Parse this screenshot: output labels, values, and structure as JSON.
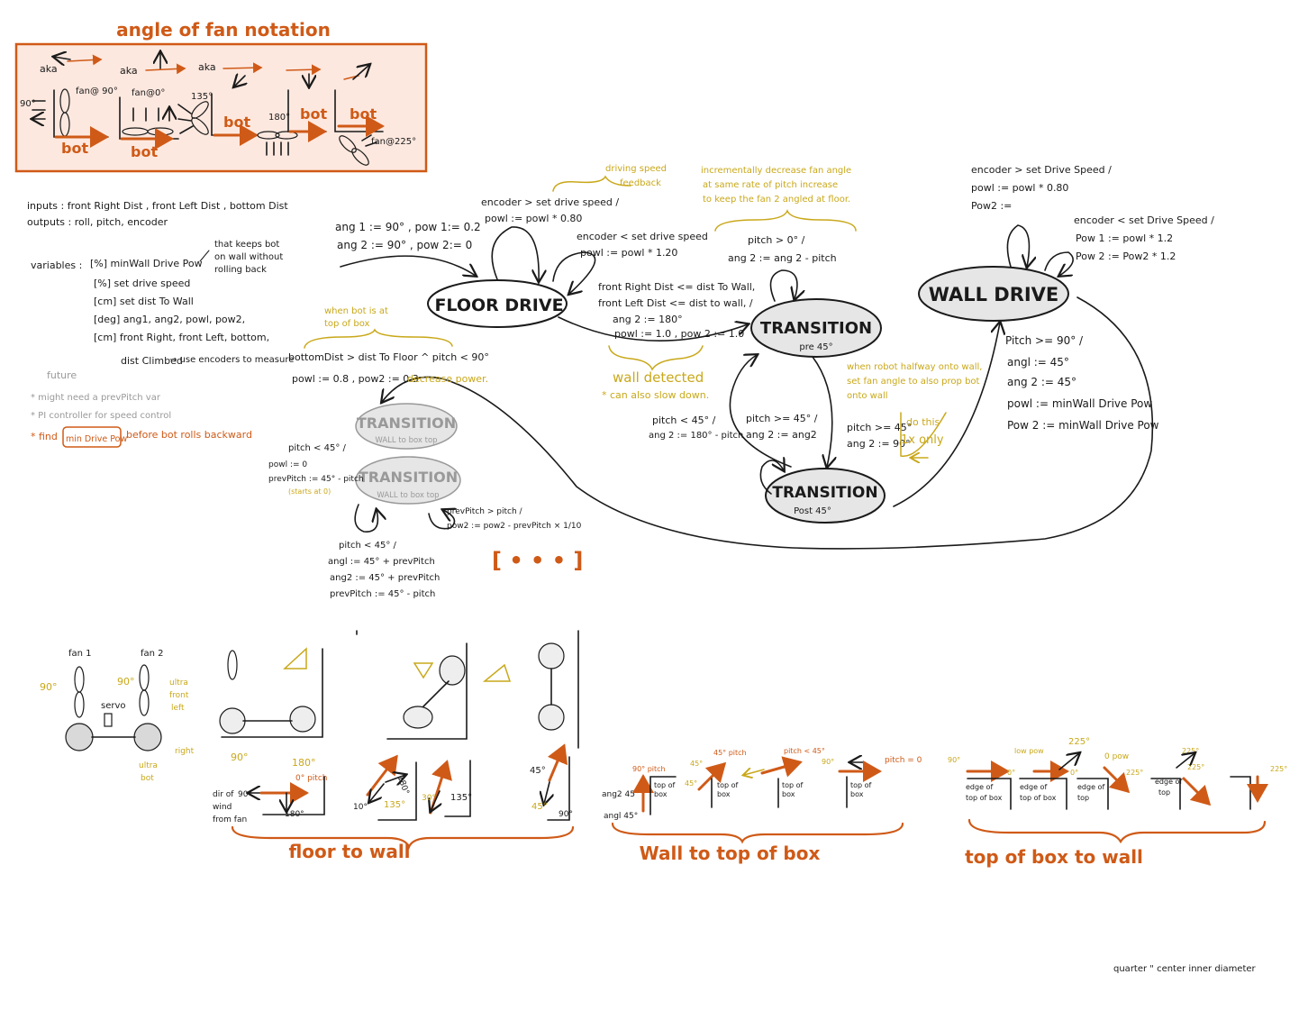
{
  "notation": {
    "title": "angle of fan notation",
    "aka": "aka",
    "fan90": "fan@ 90°",
    "fan0": "fan@0°",
    "a135": "135°",
    "a180": "180°",
    "fan225": "fan@225°",
    "deg90": "90°",
    "bot": "bot"
  },
  "io": {
    "inputs": "inputs : front Right Dist , front Left Dist , bottom Dist",
    "outputs": "outputs :  roll, pitch, encoder"
  },
  "variables": {
    "label": "variables :",
    "v1": "[%] minWall Drive Pow",
    "v1_note": "that keeps bot on wall without rolling back",
    "v2": "[%] set drive speed",
    "v3": "[cm] set dist To Wall",
    "v4": "[deg] ang1, ang2, powl, pow2,",
    "v5": "[cm] front Right, front Left, bottom,",
    "v6": "dist Climbed",
    "v6_note": "→ use encoders to measure"
  },
  "future": {
    "label": "future",
    "f1": "* might need a prevPitch var",
    "f2": "* PI controller for speed control",
    "f3_pre": "* find",
    "f3_box": "min Drive Pow",
    "f3_post": "before bot rolls backward"
  },
  "states": {
    "floor": "FLOOR DRIVE",
    "wall": "WALL DRIVE",
    "trans_pre": "TRANSITION",
    "trans_pre_sub": "pre 45°",
    "trans_post": "TRANSITION",
    "trans_post_sub": "Post 45°",
    "trans_box1": "TRANSITION",
    "trans_box1_sub": "WALL to box top",
    "trans_box2": "TRANSITION",
    "trans_box2_sub": "WALL to box top"
  },
  "labels": {
    "init1": "ang 1 := 90° , pow 1:= 0.2",
    "init2": "ang 2 := 90° , pow 2:= 0",
    "enc_up1": "encoder > set drive speed /",
    "enc_up2": "powl := powl * 0.80",
    "drive_fb": "driving speed feedback",
    "enc_dn1": "encoder < set drive speed",
    "enc_dn2": "powl := powl * 1.20",
    "fw1": "front Right Dist <= dist To Wall,",
    "fw2": "front Left Dist <= dist to wall, /",
    "fw3": "ang 2 := 180°",
    "fw4": "powl := 1.0 , pow 2 := 1.0",
    "wall_det": "wall detected",
    "slow": "* can also slow down.",
    "incr1": "incrementally decrease fan angle",
    "incr2": "at same rate of pitch increase",
    "incr3": "to keep the fan 2 angled at floor.",
    "pre_self1": "pitch > 0° /",
    "pre_self2": "ang 2 := ang 2 - pitch",
    "pre_back1": "pitch < 45° /",
    "pre_back2": "ang 2 := 180° - pitch",
    "pre_fwd1": "pitch >= 45° /",
    "pre_fwd2": "ang 2 := ang2",
    "halfway1": "when robot halfway onto wall,",
    "halfway2": "set fan angle to also prop bot",
    "halfway3": "onto wall",
    "post1": "pitch >= 45°",
    "post2": "ang 2 := 90°",
    "do_this": "do this 1x only",
    "w_enc1": "encoder > set Drive Speed /",
    "w_enc2": "powl := powl * 0.80",
    "w_enc3": "Pow2 :=",
    "w_dn1": "encoder < set Drive Speed /",
    "w_dn2": "Pow 1 := powl * 1.2",
    "w_dn3": "Pow 2 := Pow2 * 1.2",
    "w_in1": "Pitch >= 90° /",
    "w_in2": "angl := 45°",
    "w_in3": "ang 2 := 45°",
    "w_in4": "powl := minWall Drive Pow",
    "w_in5": "Pow 2 := minWall Drive Pow",
    "top_note1": "when bot is at",
    "top_note2": "top of box",
    "top_c1": "bottomDist > dist To Floor ^ pitch < 90°",
    "top_c2": "powl := 0.8 , pow2 := 0.3",
    "dec_pow": "decrease power.",
    "box_a1": "pitch < 45° /",
    "box_a2": "powl := 0",
    "box_a3": "prevPitch := 45° - pitch",
    "box_a4": "(starts at 0)",
    "box_b1": "prevPitch > pitch /",
    "box_b2": "pow2 := pow2 - prevPitch × 1/10",
    "box_c1": "pitch < 45° /",
    "box_c2": "angl := 45° + prevPitch",
    "box_c3": "ang2 := 45° + prevPitch",
    "box_c4": "prevPitch := 45° - pitch",
    "ellipsis": "[ • • • ]"
  },
  "robot": {
    "fan1": "fan 1",
    "fan2": "fan 2",
    "servo": "servo",
    "a90l": "90°",
    "a90r": "90°",
    "ultra_fl": "ultra front left",
    "right": "right",
    "ultra_bot": "ultra bot",
    "p90": "90°",
    "p180": "180°",
    "p0pitch": "0° pitch",
    "dir1": "dir of",
    "dir2": "wind",
    "dir3": "from fan",
    "d90": "90°",
    "d180": "180°",
    "d135a": "135°",
    "d10": "10°",
    "d180b": "180°",
    "d30": "30°",
    "d135b": "135°",
    "d45a": "45°",
    "d45b": "45°",
    "d90b": "90°"
  },
  "sections": {
    "s1": "floor  to  wall",
    "s2": "Wall to top of box",
    "s3": "top of box  to  wall"
  },
  "wtb": {
    "ang2": "ang2 45°",
    "ang1": "angl 45°",
    "p90": "90° pitch",
    "top_box": "top of box",
    "p45": "45° pitch",
    "a45a": "45°",
    "a45b": "45°",
    "p45lt": "pitch < 45°",
    "a90": "90°",
    "p0": "pitch = 0"
  },
  "tbw": {
    "a90": "90°",
    "low_pow": "low pow",
    "a0a": "0°",
    "a0b": "0°",
    "a225a": "225°",
    "zero_pow": "0 pow",
    "a225b": "225°",
    "edge_a": "edge of top of box",
    "edge_b": "edge of top of box",
    "edge_c": "edge of top",
    "edge_d": "edge of top",
    "a225c": "225°",
    "a225d": "225°",
    "a225e": "225°"
  },
  "footer": {
    "note": "quarter \" center inner diameter"
  },
  "colors": {
    "orange": "#cf5a17",
    "gold": "#c9a81a",
    "state_fill": "#e6e6e6",
    "panel_fill": "#fde8df",
    "grey_text": "#999999"
  }
}
